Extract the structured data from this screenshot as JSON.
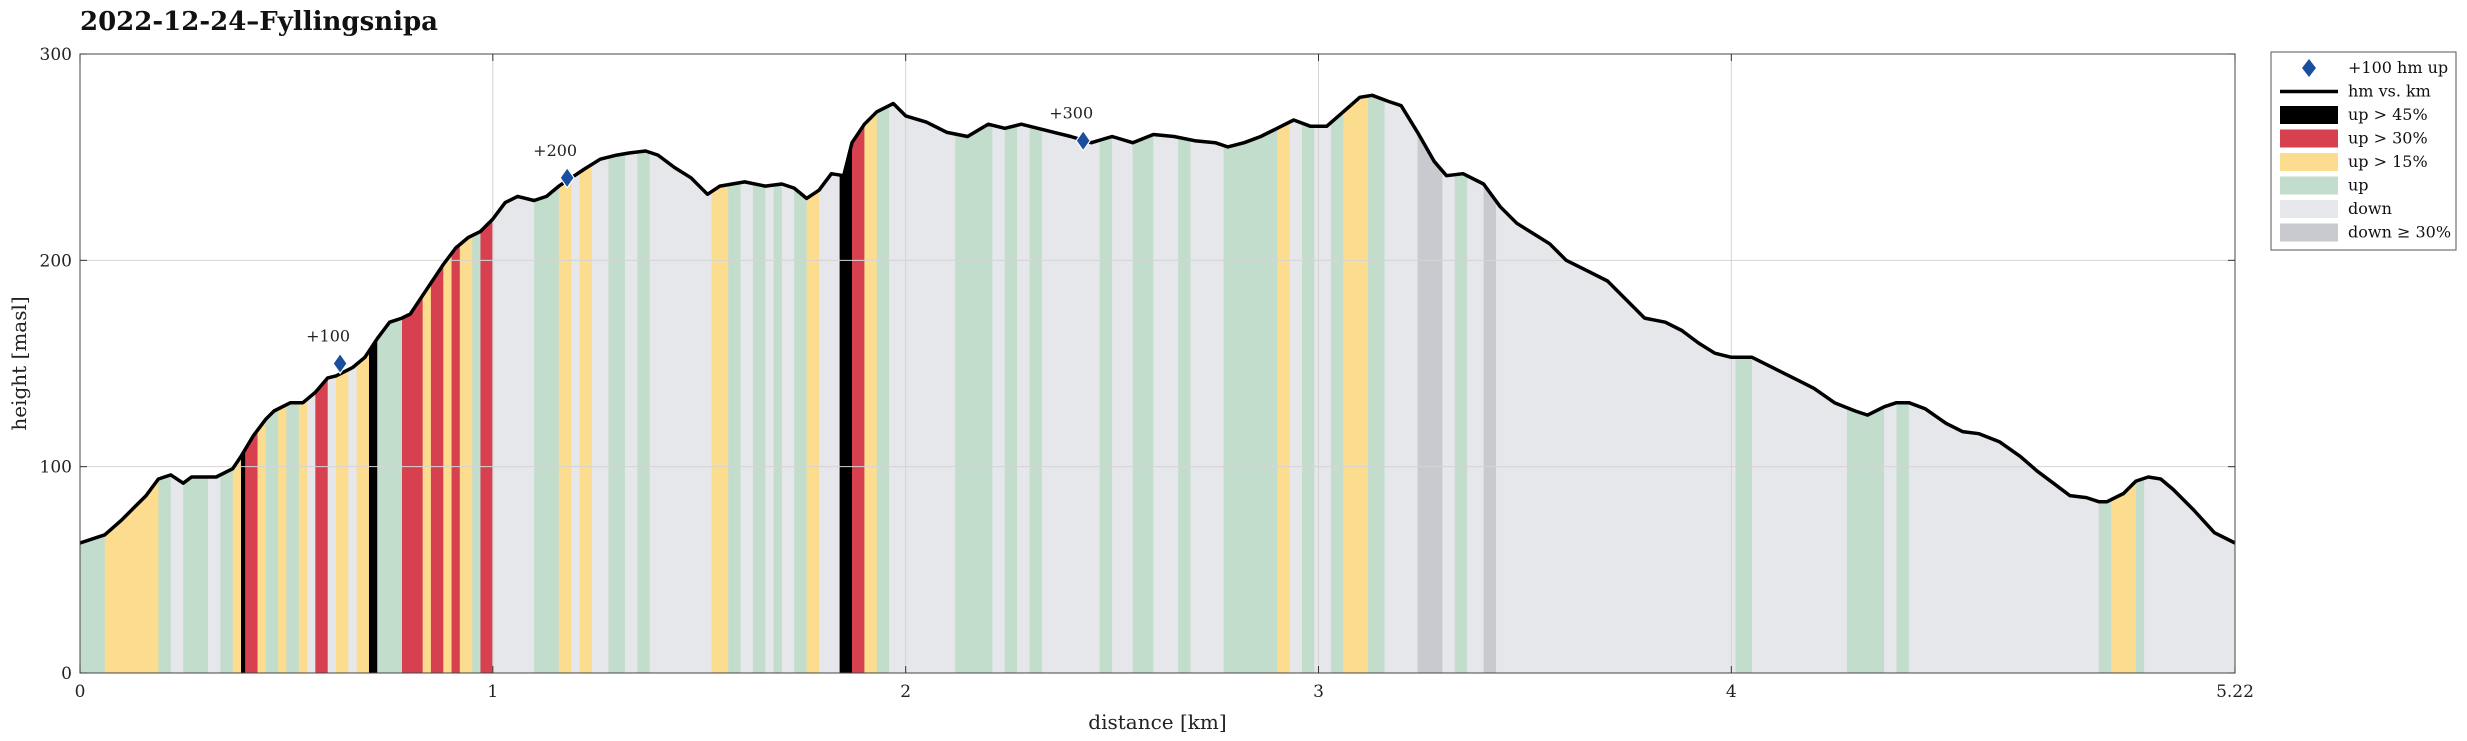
{
  "chart_data": {
    "type": "area",
    "title": "2022-12-24–Fyllingsnipa",
    "xlabel": "distance [km]",
    "ylabel": "height [masl]",
    "xlim": [
      0,
      5.22
    ],
    "ylim": [
      0,
      300
    ],
    "xticks": [
      0,
      1,
      2,
      3,
      4,
      5.22
    ],
    "xtick_labels": [
      "0",
      "1",
      "2",
      "3",
      "4",
      "5.22"
    ],
    "yticks": [
      0,
      100,
      200,
      300
    ],
    "ytick_labels": [
      "0",
      "100",
      "200",
      "300"
    ],
    "grid": true,
    "legend_position": "outside-right",
    "colors": {
      "line": "#000000",
      "marker": "#1a4fa0",
      "up_gt_45": "#000000",
      "up_gt_30": "#d7414f",
      "up_gt_15": "#fcdc8f",
      "up": "#c3ddcd",
      "down": "#e6e7eb",
      "down_ge_30": "#c8cad0"
    },
    "legend": [
      {
        "key": "marker",
        "label": "+100 hm up"
      },
      {
        "key": "line",
        "label": "hm vs. km"
      },
      {
        "key": "up_gt_45",
        "label": "up > 45%"
      },
      {
        "key": "up_gt_30",
        "label": "up > 30%"
      },
      {
        "key": "up_gt_15",
        "label": "up > 15%"
      },
      {
        "key": "up",
        "label": "up"
      },
      {
        "key": "down",
        "label": "down"
      },
      {
        "key": "down_ge_30",
        "label": "down ≥ 30%"
      }
    ],
    "profile": [
      [
        0,
        63
      ],
      [
        0.06,
        67
      ],
      [
        0.1,
        74
      ],
      [
        0.13,
        80
      ],
      [
        0.16,
        86
      ],
      [
        0.19,
        94
      ],
      [
        0.22,
        96
      ],
      [
        0.25,
        92
      ],
      [
        0.27,
        95
      ],
      [
        0.33,
        95
      ],
      [
        0.37,
        99
      ],
      [
        0.39,
        105
      ],
      [
        0.42,
        115
      ],
      [
        0.45,
        123
      ],
      [
        0.47,
        127
      ],
      [
        0.51,
        131
      ],
      [
        0.54,
        131
      ],
      [
        0.57,
        136
      ],
      [
        0.6,
        143
      ],
      [
        0.62,
        144
      ],
      [
        0.66,
        148
      ],
      [
        0.69,
        153
      ],
      [
        0.72,
        162
      ],
      [
        0.75,
        170
      ],
      [
        0.78,
        172
      ],
      [
        0.8,
        174
      ],
      [
        0.84,
        186
      ],
      [
        0.88,
        198
      ],
      [
        0.91,
        206
      ],
      [
        0.94,
        211
      ],
      [
        0.97,
        214
      ],
      [
        1.0,
        220
      ],
      [
        1.03,
        228
      ],
      [
        1.06,
        231
      ],
      [
        1.1,
        229
      ],
      [
        1.13,
        231
      ],
      [
        1.16,
        236
      ],
      [
        1.19,
        240
      ],
      [
        1.22,
        244
      ],
      [
        1.26,
        249
      ],
      [
        1.3,
        251
      ],
      [
        1.33,
        252
      ],
      [
        1.37,
        253
      ],
      [
        1.4,
        251
      ],
      [
        1.44,
        245
      ],
      [
        1.48,
        240
      ],
      [
        1.52,
        232
      ],
      [
        1.55,
        236
      ],
      [
        1.58,
        237
      ],
      [
        1.61,
        238
      ],
      [
        1.66,
        236
      ],
      [
        1.7,
        237
      ],
      [
        1.73,
        235
      ],
      [
        1.76,
        230
      ],
      [
        1.79,
        234
      ],
      [
        1.82,
        242
      ],
      [
        1.85,
        241
      ],
      [
        1.87,
        257
      ],
      [
        1.9,
        266
      ],
      [
        1.93,
        272
      ],
      [
        1.97,
        276
      ],
      [
        2.0,
        270
      ],
      [
        2.05,
        267
      ],
      [
        2.1,
        262
      ],
      [
        2.15,
        260
      ],
      [
        2.2,
        266
      ],
      [
        2.24,
        264
      ],
      [
        2.28,
        266
      ],
      [
        2.32,
        264
      ],
      [
        2.36,
        262
      ],
      [
        2.4,
        260
      ],
      [
        2.45,
        257
      ],
      [
        2.5,
        260
      ],
      [
        2.55,
        257
      ],
      [
        2.6,
        261
      ],
      [
        2.65,
        260
      ],
      [
        2.7,
        258
      ],
      [
        2.75,
        257
      ],
      [
        2.78,
        255
      ],
      [
        2.82,
        257
      ],
      [
        2.86,
        260
      ],
      [
        2.9,
        264
      ],
      [
        2.94,
        268
      ],
      [
        2.98,
        265
      ],
      [
        3.02,
        265
      ],
      [
        3.06,
        272
      ],
      [
        3.1,
        279
      ],
      [
        3.13,
        280
      ],
      [
        3.17,
        277
      ],
      [
        3.2,
        275
      ],
      [
        3.24,
        262
      ],
      [
        3.28,
        248
      ],
      [
        3.31,
        241
      ],
      [
        3.35,
        242
      ],
      [
        3.4,
        237
      ],
      [
        3.44,
        226
      ],
      [
        3.48,
        218
      ],
      [
        3.52,
        213
      ],
      [
        3.56,
        208
      ],
      [
        3.6,
        200
      ],
      [
        3.65,
        195
      ],
      [
        3.7,
        190
      ],
      [
        3.75,
        180
      ],
      [
        3.79,
        172
      ],
      [
        3.84,
        170
      ],
      [
        3.88,
        166
      ],
      [
        3.92,
        160
      ],
      [
        3.96,
        155
      ],
      [
        4.0,
        153
      ],
      [
        4.05,
        153
      ],
      [
        4.1,
        148
      ],
      [
        4.15,
        143
      ],
      [
        4.2,
        138
      ],
      [
        4.25,
        131
      ],
      [
        4.3,
        127
      ],
      [
        4.33,
        125
      ],
      [
        4.37,
        129
      ],
      [
        4.4,
        131
      ],
      [
        4.43,
        131
      ],
      [
        4.47,
        128
      ],
      [
        4.52,
        121
      ],
      [
        4.56,
        117
      ],
      [
        4.6,
        116
      ],
      [
        4.65,
        112
      ],
      [
        4.7,
        105
      ],
      [
        4.74,
        98
      ],
      [
        4.78,
        92
      ],
      [
        4.82,
        86
      ],
      [
        4.86,
        85
      ],
      [
        4.89,
        83
      ],
      [
        4.91,
        83
      ],
      [
        4.95,
        87
      ],
      [
        4.98,
        93
      ],
      [
        5.01,
        95
      ],
      [
        5.04,
        94
      ],
      [
        5.07,
        89
      ],
      [
        5.12,
        79
      ],
      [
        5.17,
        68
      ],
      [
        5.22,
        63
      ]
    ],
    "segments": [
      {
        "from": 0,
        "to": 0.06,
        "class": "up"
      },
      {
        "from": 0.06,
        "to": 0.19,
        "class": "up_gt_15"
      },
      {
        "from": 0.19,
        "to": 0.22,
        "class": "up"
      },
      {
        "from": 0.22,
        "to": 0.25,
        "class": "down"
      },
      {
        "from": 0.25,
        "to": 0.31,
        "class": "up"
      },
      {
        "from": 0.31,
        "to": 0.34,
        "class": "down"
      },
      {
        "from": 0.34,
        "to": 0.37,
        "class": "up"
      },
      {
        "from": 0.37,
        "to": 0.39,
        "class": "up_gt_15"
      },
      {
        "from": 0.39,
        "to": 0.4,
        "class": "up_gt_45"
      },
      {
        "from": 0.4,
        "to": 0.43,
        "class": "up_gt_30"
      },
      {
        "from": 0.43,
        "to": 0.45,
        "class": "up_gt_15"
      },
      {
        "from": 0.45,
        "to": 0.48,
        "class": "up"
      },
      {
        "from": 0.48,
        "to": 0.5,
        "class": "up_gt_15"
      },
      {
        "from": 0.5,
        "to": 0.53,
        "class": "up"
      },
      {
        "from": 0.53,
        "to": 0.55,
        "class": "up_gt_15"
      },
      {
        "from": 0.55,
        "to": 0.57,
        "class": "down"
      },
      {
        "from": 0.57,
        "to": 0.6,
        "class": "up_gt_30"
      },
      {
        "from": 0.6,
        "to": 0.62,
        "class": "down"
      },
      {
        "from": 0.62,
        "to": 0.65,
        "class": "up_gt_15"
      },
      {
        "from": 0.65,
        "to": 0.67,
        "class": "down"
      },
      {
        "from": 0.67,
        "to": 0.7,
        "class": "up_gt_15"
      },
      {
        "from": 0.7,
        "to": 0.72,
        "class": "up_gt_45"
      },
      {
        "from": 0.72,
        "to": 0.78,
        "class": "up"
      },
      {
        "from": 0.78,
        "to": 0.83,
        "class": "up_gt_30"
      },
      {
        "from": 0.83,
        "to": 0.85,
        "class": "up_gt_15"
      },
      {
        "from": 0.85,
        "to": 0.88,
        "class": "up_gt_30"
      },
      {
        "from": 0.88,
        "to": 0.9,
        "class": "up_gt_15"
      },
      {
        "from": 0.9,
        "to": 0.92,
        "class": "up_gt_30"
      },
      {
        "from": 0.92,
        "to": 0.95,
        "class": "up_gt_15"
      },
      {
        "from": 0.95,
        "to": 0.97,
        "class": "up"
      },
      {
        "from": 0.97,
        "to": 1.0,
        "class": "up_gt_30"
      },
      {
        "from": 1.0,
        "to": 1.04,
        "class": "down"
      },
      {
        "from": 1.04,
        "to": 1.1,
        "class": "down"
      },
      {
        "from": 1.1,
        "to": 1.16,
        "class": "up"
      },
      {
        "from": 1.16,
        "to": 1.19,
        "class": "up_gt_15"
      },
      {
        "from": 1.19,
        "to": 1.21,
        "class": "down"
      },
      {
        "from": 1.21,
        "to": 1.24,
        "class": "up_gt_15"
      },
      {
        "from": 1.24,
        "to": 1.28,
        "class": "down"
      },
      {
        "from": 1.28,
        "to": 1.32,
        "class": "up"
      },
      {
        "from": 1.32,
        "to": 1.35,
        "class": "down"
      },
      {
        "from": 1.35,
        "to": 1.38,
        "class": "up"
      },
      {
        "from": 1.38,
        "to": 1.53,
        "class": "down"
      },
      {
        "from": 1.53,
        "to": 1.57,
        "class": "up_gt_15"
      },
      {
        "from": 1.57,
        "to": 1.6,
        "class": "up"
      },
      {
        "from": 1.6,
        "to": 1.63,
        "class": "down"
      },
      {
        "from": 1.63,
        "to": 1.66,
        "class": "up"
      },
      {
        "from": 1.66,
        "to": 1.68,
        "class": "down"
      },
      {
        "from": 1.68,
        "to": 1.7,
        "class": "up"
      },
      {
        "from": 1.7,
        "to": 1.73,
        "class": "down"
      },
      {
        "from": 1.73,
        "to": 1.76,
        "class": "up"
      },
      {
        "from": 1.76,
        "to": 1.79,
        "class": "up_gt_15"
      },
      {
        "from": 1.79,
        "to": 1.84,
        "class": "down"
      },
      {
        "from": 1.84,
        "to": 1.87,
        "class": "up_gt_45"
      },
      {
        "from": 1.87,
        "to": 1.9,
        "class": "up_gt_30"
      },
      {
        "from": 1.9,
        "to": 1.93,
        "class": "up_gt_15"
      },
      {
        "from": 1.93,
        "to": 1.96,
        "class": "up"
      },
      {
        "from": 1.96,
        "to": 2.12,
        "class": "down"
      },
      {
        "from": 2.12,
        "to": 2.21,
        "class": "up"
      },
      {
        "from": 2.21,
        "to": 2.24,
        "class": "down"
      },
      {
        "from": 2.24,
        "to": 2.27,
        "class": "up"
      },
      {
        "from": 2.27,
        "to": 2.3,
        "class": "down"
      },
      {
        "from": 2.3,
        "to": 2.33,
        "class": "up"
      },
      {
        "from": 2.33,
        "to": 2.47,
        "class": "down"
      },
      {
        "from": 2.47,
        "to": 2.5,
        "class": "up"
      },
      {
        "from": 2.5,
        "to": 2.55,
        "class": "down"
      },
      {
        "from": 2.55,
        "to": 2.6,
        "class": "up"
      },
      {
        "from": 2.6,
        "to": 2.66,
        "class": "down"
      },
      {
        "from": 2.66,
        "to": 2.69,
        "class": "up"
      },
      {
        "from": 2.69,
        "to": 2.77,
        "class": "down"
      },
      {
        "from": 2.77,
        "to": 2.9,
        "class": "up"
      },
      {
        "from": 2.9,
        "to": 2.93,
        "class": "up_gt_15"
      },
      {
        "from": 2.93,
        "to": 2.96,
        "class": "down"
      },
      {
        "from": 2.96,
        "to": 2.99,
        "class": "up"
      },
      {
        "from": 2.99,
        "to": 3.03,
        "class": "down"
      },
      {
        "from": 3.03,
        "to": 3.06,
        "class": "up"
      },
      {
        "from": 3.06,
        "to": 3.12,
        "class": "up_gt_15"
      },
      {
        "from": 3.12,
        "to": 3.16,
        "class": "up"
      },
      {
        "from": 3.16,
        "to": 3.24,
        "class": "down"
      },
      {
        "from": 3.24,
        "to": 3.3,
        "class": "down_ge_30"
      },
      {
        "from": 3.3,
        "to": 3.33,
        "class": "down"
      },
      {
        "from": 3.33,
        "to": 3.36,
        "class": "up"
      },
      {
        "from": 3.36,
        "to": 3.4,
        "class": "down"
      },
      {
        "from": 3.4,
        "to": 3.43,
        "class": "down_ge_30"
      },
      {
        "from": 3.43,
        "to": 4.01,
        "class": "down"
      },
      {
        "from": 4.01,
        "to": 4.05,
        "class": "up"
      },
      {
        "from": 4.05,
        "to": 4.28,
        "class": "down"
      },
      {
        "from": 4.28,
        "to": 4.37,
        "class": "up"
      },
      {
        "from": 4.37,
        "to": 4.4,
        "class": "down"
      },
      {
        "from": 4.4,
        "to": 4.43,
        "class": "up"
      },
      {
        "from": 4.43,
        "to": 4.89,
        "class": "down"
      },
      {
        "from": 4.89,
        "to": 4.92,
        "class": "up"
      },
      {
        "from": 4.92,
        "to": 4.98,
        "class": "up_gt_15"
      },
      {
        "from": 4.98,
        "to": 5.0,
        "class": "up"
      },
      {
        "from": 5.0,
        "to": 5.22,
        "class": "down"
      }
    ],
    "markers": [
      {
        "x": 0.63,
        "y": 150,
        "label": "+100"
      },
      {
        "x": 1.18,
        "y": 240,
        "label": "+200"
      },
      {
        "x": 2.43,
        "y": 258,
        "label": "+300"
      }
    ]
  }
}
